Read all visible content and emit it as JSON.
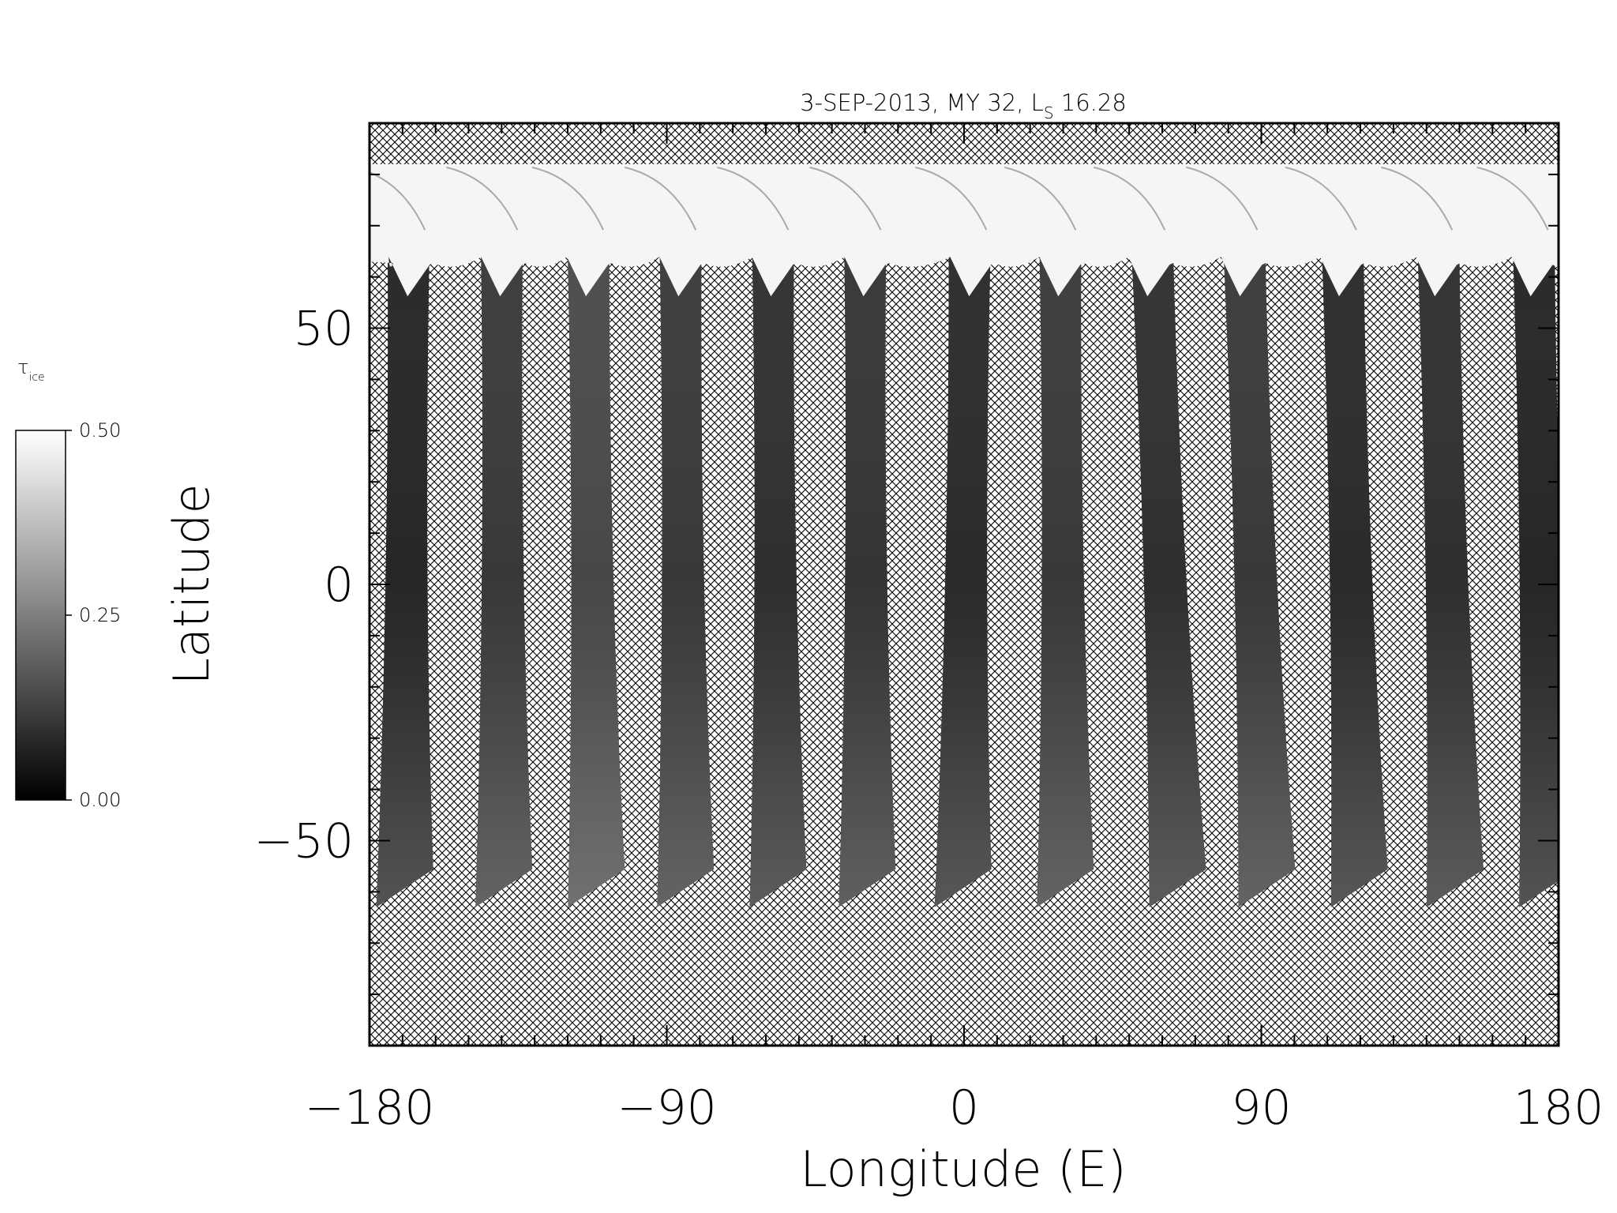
{
  "chart_data": {
    "type": "heatmap",
    "title": "3-SEP-2013, MY 32,  L",
    "title_subscript": "S",
    "title_suffix": " 16.28",
    "xlabel": "Longitude (E)",
    "ylabel": "Latitude",
    "xlim": [
      -180,
      180
    ],
    "ylim": [
      -90,
      90
    ],
    "x_ticks": [
      {
        "value": -180,
        "label": "−180"
      },
      {
        "value": -90,
        "label": "−90"
      },
      {
        "value": 0,
        "label": "0"
      },
      {
        "value": 90,
        "label": "90"
      },
      {
        "value": 180,
        "label": "180"
      }
    ],
    "y_ticks": [
      {
        "value": 50,
        "label": "50"
      },
      {
        "value": 0,
        "label": "0"
      },
      {
        "value": -50,
        "label": "−50"
      }
    ],
    "x_minor_step": 10,
    "y_minor_step": 10,
    "grid": false,
    "colorbar": {
      "symbol": "τ",
      "subscript": "ice",
      "ticks": [
        {
          "value": 0.0,
          "label": "0.00"
        },
        {
          "value": 0.25,
          "label": "0.25"
        },
        {
          "value": 0.5,
          "label": "0.50"
        }
      ],
      "range": [
        0.0,
        0.5
      ],
      "color_low": "#000000",
      "color_high": "#ffffff",
      "placement": "left"
    },
    "missing_data_pattern": "crosshatch",
    "coverage_lat_range": [
      -63,
      82
    ],
    "polar_band_lat": 63,
    "swaths": [
      {
        "lon_top": -168,
        "lon_bottom": -171
      },
      {
        "lon_top": -140,
        "lon_bottom": -141
      },
      {
        "lon_top": -114,
        "lon_bottom": -113
      },
      {
        "lon_top": -86,
        "lon_bottom": -86
      },
      {
        "lon_top": -58,
        "lon_bottom": -58
      },
      {
        "lon_top": -30,
        "lon_bottom": -31
      },
      {
        "lon_top": 2,
        "lon_bottom": -2
      },
      {
        "lon_top": 29,
        "lon_bottom": 29
      },
      {
        "lon_top": 56,
        "lon_bottom": 63
      },
      {
        "lon_top": 84,
        "lon_bottom": 90
      },
      {
        "lon_top": 114,
        "lon_bottom": 118
      },
      {
        "lon_top": 143,
        "lon_bottom": 147
      },
      {
        "lon_top": 172,
        "lon_bottom": 175
      }
    ],
    "swath_tau": [
      0.08,
      0.12,
      0.15,
      0.12,
      0.1,
      0.11,
      0.09,
      0.12,
      0.1,
      0.12,
      0.09,
      0.1,
      0.08
    ],
    "polar_cap_tau": 0.48
  }
}
